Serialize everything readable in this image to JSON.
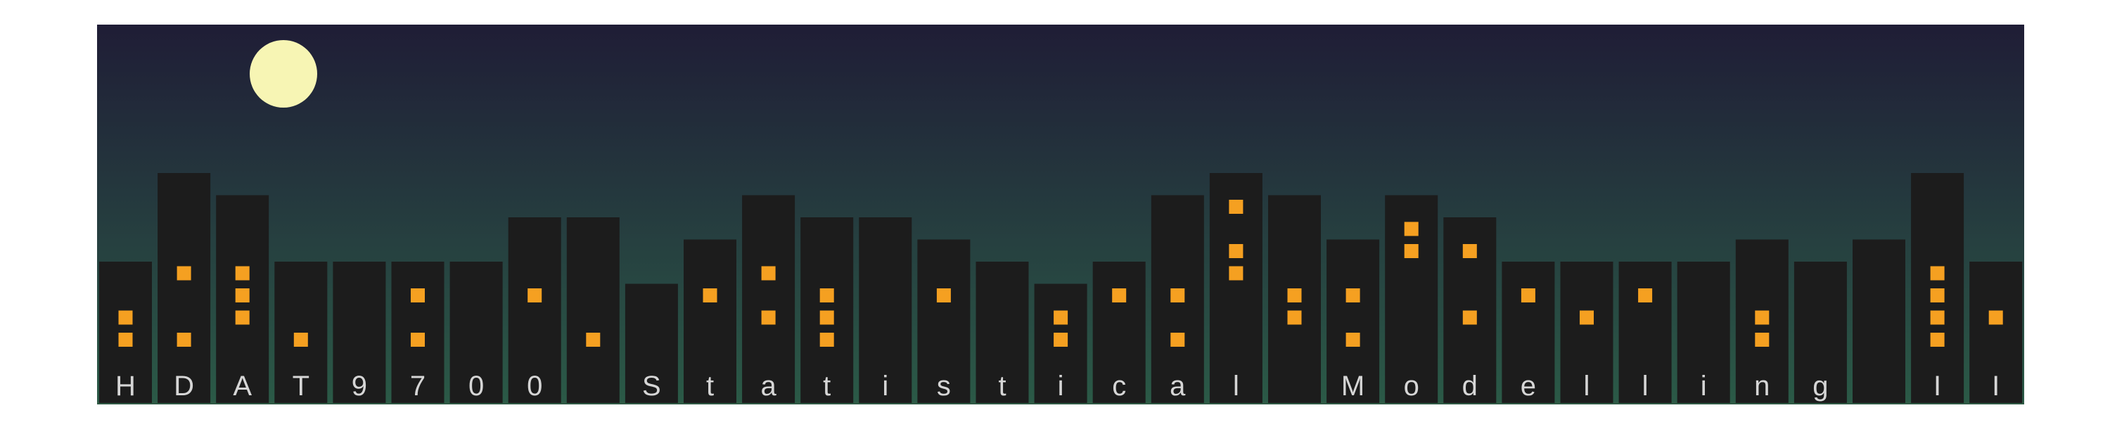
{
  "banner": {
    "colors": {
      "sky_top": "#1f1d36",
      "sky_bottom": "#2b5a47",
      "building": "#1c1c1c",
      "window": "#f5a021",
      "moon": "#f7f5b4",
      "label": "#d6d6d6",
      "ground_line": "#2f5a45"
    },
    "moon": {
      "icon": "moon-icon"
    },
    "buildings": [
      {
        "label": "H",
        "windows": [
          1,
          2
        ]
      },
      {
        "label": "D",
        "windows": [
          4,
          1
        ]
      },
      {
        "label": "A",
        "windows": [
          4,
          3,
          2
        ]
      },
      {
        "label": "T",
        "windows": [
          1
        ]
      },
      {
        "label": "9",
        "windows": []
      },
      {
        "label": "7",
        "windows": [
          3,
          1
        ]
      },
      {
        "label": "0",
        "windows": []
      },
      {
        "label": "0",
        "windows": [
          3
        ]
      },
      {
        "label": "",
        "windows": [
          1
        ]
      },
      {
        "label": "S",
        "windows": []
      },
      {
        "label": "t",
        "windows": [
          3
        ]
      },
      {
        "label": "a",
        "windows": [
          4,
          2
        ]
      },
      {
        "label": "t",
        "windows": [
          3,
          2,
          1
        ]
      },
      {
        "label": "i",
        "windows": []
      },
      {
        "label": "s",
        "windows": [
          3
        ]
      },
      {
        "label": "t",
        "windows": []
      },
      {
        "label": "i",
        "windows": [
          2,
          1
        ]
      },
      {
        "label": "c",
        "windows": [
          3
        ]
      },
      {
        "label": "a",
        "windows": [
          3,
          1
        ]
      },
      {
        "label": "l",
        "windows": [
          7,
          5,
          4
        ]
      },
      {
        "label": "",
        "windows": [
          3,
          2
        ]
      },
      {
        "label": "M",
        "windows": [
          3,
          1
        ]
      },
      {
        "label": "o",
        "windows": [
          6,
          5
        ]
      },
      {
        "label": "d",
        "windows": [
          5,
          2
        ]
      },
      {
        "label": "e",
        "windows": [
          3
        ]
      },
      {
        "label": "l",
        "windows": [
          2
        ]
      },
      {
        "label": "l",
        "windows": [
          3
        ]
      },
      {
        "label": "i",
        "windows": []
      },
      {
        "label": "n",
        "windows": [
          2,
          1
        ]
      },
      {
        "label": "g",
        "windows": []
      },
      {
        "label": "",
        "windows": []
      },
      {
        "label": "I",
        "windows": [
          4,
          3,
          2,
          1
        ]
      },
      {
        "label": "I",
        "windows": [
          2
        ]
      }
    ]
  }
}
